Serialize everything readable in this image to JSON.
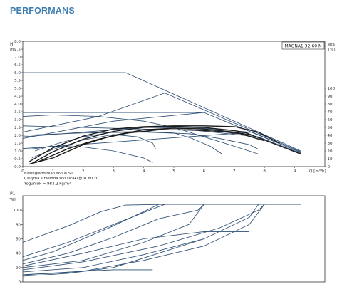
{
  "section_title": "PERFORMANS",
  "colors": {
    "pump_curve": "#2e4f74",
    "system_curve": "#1a1a1a",
    "axis": "#333333",
    "grid": "#999999",
    "title": "#3f7fb0"
  },
  "chart_data": [
    {
      "id": "head",
      "type": "line",
      "model": "MAGNA1 32-60 N",
      "ylabel_left_unit": "H",
      "ylabel_left_sub": "[m]",
      "ylabel_right_unit": "eta",
      "ylabel_right_sub": "[%]",
      "xlabel": "Q [m³/h]",
      "xlim": [
        0,
        10
      ],
      "ylim": [
        0,
        8
      ],
      "x_ticks": [
        0,
        1,
        2,
        3,
        4,
        5,
        6,
        7,
        8,
        9
      ],
      "y_ticks": [
        "0.0",
        "0.5",
        "1.0",
        "1.5",
        "2.0",
        "2.5",
        "3.0",
        "3.5",
        "4.0",
        "4.5",
        "5.0",
        "5.5",
        "6.0",
        "6.5",
        "7.0",
        "7.5",
        "8.0"
      ],
      "eta_ticks": [
        {
          "label": "0",
          "h": 0.0
        },
        {
          "label": "10",
          "h": 0.5
        },
        {
          "label": "20",
          "h": 1.0
        },
        {
          "label": "30",
          "h": 1.5
        },
        {
          "label": "40",
          "h": 2.0
        },
        {
          "label": "50",
          "h": 2.5
        },
        {
          "label": "60",
          "h": 3.0
        },
        {
          "label": "70",
          "h": 3.5
        },
        {
          "label": "80",
          "h": 4.0
        },
        {
          "label": "90",
          "h": 4.5
        },
        {
          "label": "100",
          "h": 5.0
        }
      ],
      "notes": [
        "Basınglandırılan sıvı = Su",
        "Çalışma sırasında sıvı sıcaklığı = 60 °C",
        "Yoğunluk = 983.2 kg/m³"
      ],
      "series": [
        {
          "kind": "pump",
          "points": [
            [
              0,
              6.0
            ],
            [
              3.4,
              6.0
            ],
            [
              9.2,
              1.0
            ]
          ]
        },
        {
          "kind": "pump",
          "points": [
            [
              0,
              4.7
            ],
            [
              4.7,
              4.7
            ],
            [
              9.2,
              0.95
            ]
          ]
        },
        {
          "kind": "pump",
          "points": [
            [
              0,
              3.45
            ],
            [
              6.0,
              3.45
            ],
            [
              9.2,
              0.9
            ]
          ]
        },
        {
          "kind": "pump",
          "points": [
            [
              0,
              2.6
            ],
            [
              5.8,
              2.3
            ],
            [
              7.8,
              1.9
            ],
            [
              9.2,
              0.85
            ]
          ]
        },
        {
          "kind": "pump",
          "points": [
            [
              0,
              1.15
            ],
            [
              7.6,
              2.2
            ],
            [
              9.2,
              0.9
            ]
          ]
        },
        {
          "kind": "pump",
          "points": [
            [
              0,
              1.8
            ],
            [
              3.0,
              2.9
            ],
            [
              6.0,
              3.45
            ]
          ]
        },
        {
          "kind": "pump",
          "points": [
            [
              0,
              2.2
            ],
            [
              2.5,
              3.2
            ],
            [
              4.7,
              4.7
            ]
          ]
        },
        {
          "kind": "pump",
          "points": [
            [
              0,
              1.9
            ],
            [
              2,
              2.2
            ],
            [
              4,
              2.5
            ],
            [
              6,
              2.45
            ],
            [
              7.5,
              2.2
            ]
          ]
        },
        {
          "kind": "pump",
          "points": [
            [
              0,
              3.2
            ],
            [
              1,
              3.3
            ],
            [
              2.5,
              3.2
            ],
            [
              4,
              2.9
            ],
            [
              5,
              2.5
            ],
            [
              6,
              1.9
            ],
            [
              7,
              1.3
            ],
            [
              7.8,
              0.8
            ]
          ]
        },
        {
          "kind": "pump",
          "points": [
            [
              0,
              2.0
            ],
            [
              2,
              2.15
            ],
            [
              4,
              2.2
            ],
            [
              5.5,
              2.1
            ],
            [
              6.5,
              1.8
            ],
            [
              7.5,
              1.4
            ],
            [
              7.8,
              1.1
            ]
          ]
        },
        {
          "kind": "pump",
          "points": [
            [
              0.4,
              1.0
            ],
            [
              1.2,
              1.5
            ],
            [
              2,
              1.9
            ],
            [
              3,
              2.2
            ],
            [
              4,
              2.25
            ],
            [
              5,
              2.15
            ],
            [
              5.6,
              1.8
            ],
            [
              6.2,
              1.3
            ],
            [
              6.6,
              0.8
            ]
          ]
        },
        {
          "kind": "pump",
          "points": [
            [
              0.2,
              1.1
            ],
            [
              1,
              1.3
            ],
            [
              2,
              1.25
            ],
            [
              3,
              1.0
            ],
            [
              4,
              0.55
            ],
            [
              4.3,
              0.25
            ]
          ]
        },
        {
          "kind": "pump",
          "points": [
            [
              0.3,
              0.55
            ],
            [
              1,
              1.1
            ],
            [
              2,
              1.7
            ],
            [
              3,
              2.05
            ],
            [
              3.8,
              1.9
            ],
            [
              4.3,
              1.5
            ],
            [
              4.4,
              1.1
            ]
          ]
        },
        {
          "kind": "system",
          "points": [
            [
              0.2,
              0.3
            ],
            [
              1,
              1.2
            ],
            [
              2,
              1.95
            ],
            [
              3,
              2.4
            ],
            [
              4,
              2.55
            ],
            [
              5,
              2.6
            ],
            [
              6,
              2.6
            ],
            [
              7,
              2.55
            ],
            [
              7.8,
              2.2
            ],
            [
              8.5,
              1.5
            ]
          ]
        },
        {
          "kind": "system",
          "points": [
            [
              0.3,
              0.2
            ],
            [
              1,
              0.95
            ],
            [
              2,
              1.75
            ],
            [
              3,
              2.25
            ],
            [
              4,
              2.5
            ],
            [
              5,
              2.55
            ],
            [
              6,
              2.5
            ],
            [
              7,
              2.3
            ],
            [
              7.4,
              2.15
            ],
            [
              8,
              1.7
            ],
            [
              9.2,
              0.8
            ]
          ]
        },
        {
          "kind": "system",
          "points": [
            [
              0.5,
              0.3
            ],
            [
              1.5,
              1.15
            ],
            [
              2.5,
              1.75
            ],
            [
              3.5,
              2.15
            ],
            [
              4.5,
              2.35
            ],
            [
              5.5,
              2.35
            ],
            [
              6.5,
              2.25
            ],
            [
              7.2,
              2.1
            ],
            [
              8,
              1.65
            ]
          ]
        },
        {
          "kind": "system",
          "points": [
            [
              0.2,
              0.15
            ],
            [
              1,
              0.55
            ],
            [
              2,
              1.4
            ],
            [
              3,
              2.0
            ],
            [
              4,
              2.35
            ],
            [
              5,
              2.45
            ],
            [
              6,
              2.4
            ],
            [
              7,
              2.2
            ],
            [
              7.6,
              2.0
            ]
          ]
        }
      ]
    },
    {
      "id": "power",
      "type": "line",
      "ylabel_unit": "P1",
      "ylabel_sub": "[W]",
      "xlim": [
        0,
        10
      ],
      "ylim": [
        0,
        120
      ],
      "y_ticks": [
        "0",
        "20",
        "40",
        "60",
        "80",
        "100"
      ],
      "series": [
        {
          "points": [
            [
              0,
              55
            ],
            [
              1.5,
              78
            ],
            [
              2.6,
              98
            ],
            [
              3.4,
              107
            ],
            [
              4.7,
              108
            ],
            [
              9.2,
              108
            ]
          ]
        },
        {
          "points": [
            [
              0,
              35
            ],
            [
              1.5,
              55
            ],
            [
              3.0,
              80
            ],
            [
              4.2,
              100
            ],
            [
              4.7,
              108
            ]
          ]
        },
        {
          "points": [
            [
              0,
              25
            ],
            [
              1.5,
              40
            ],
            [
              3.0,
              62
            ],
            [
              4.5,
              88
            ],
            [
              5.8,
              100
            ],
            [
              6.0,
              108
            ]
          ]
        },
        {
          "points": [
            [
              0,
              20
            ],
            [
              2,
              30
            ],
            [
              4,
              55
            ],
            [
              5.5,
              80
            ],
            [
              6.0,
              108
            ]
          ]
        },
        {
          "points": [
            [
              0,
              17
            ],
            [
              2,
              28
            ],
            [
              4.5,
              50
            ],
            [
              6.5,
              75
            ],
            [
              7.8,
              100
            ],
            [
              8,
              108
            ]
          ]
        },
        {
          "points": [
            [
              0,
              14
            ],
            [
              2,
              20
            ],
            [
              4,
              38
            ],
            [
              6,
              60
            ],
            [
              7.5,
              90
            ],
            [
              7.8,
              108
            ]
          ]
        },
        {
          "points": [
            [
              0,
              10
            ],
            [
              2,
              15
            ],
            [
              4,
              30
            ],
            [
              6,
              50
            ],
            [
              7.5,
              80
            ],
            [
              8.0,
              108
            ]
          ]
        },
        {
          "points": [
            [
              0,
              22
            ],
            [
              2,
              40
            ],
            [
              4,
              60
            ],
            [
              6,
              70
            ],
            [
              7.5,
              70
            ]
          ]
        },
        {
          "points": [
            [
              0,
              10
            ],
            [
              1,
              12
            ],
            [
              2,
              15
            ],
            [
              3,
              17
            ],
            [
              4.3,
              17
            ]
          ]
        },
        {
          "points": [
            [
              0,
              8
            ],
            [
              1.5,
              12
            ],
            [
              3,
              20
            ],
            [
              4.5,
              40
            ],
            [
              6,
              60
            ]
          ]
        },
        {
          "points": [
            [
              0,
              30
            ],
            [
              1,
              42
            ],
            [
              2,
              60
            ],
            [
              3,
              78
            ],
            [
              4,
              98
            ],
            [
              4.5,
              108
            ]
          ]
        }
      ]
    }
  ]
}
